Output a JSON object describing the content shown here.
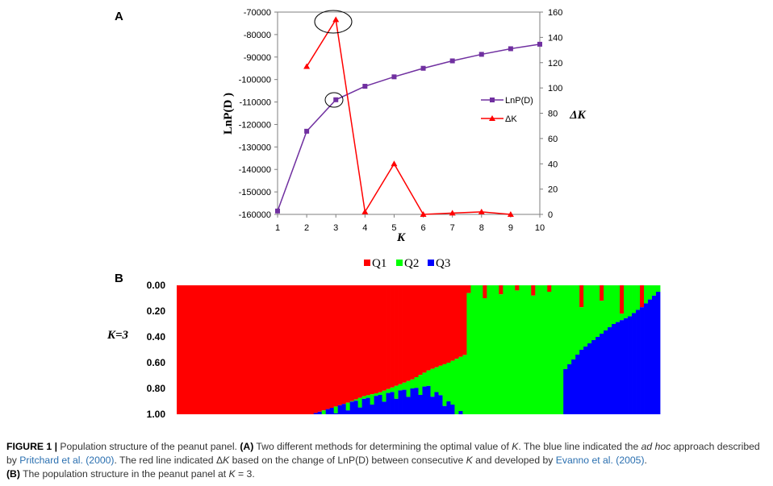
{
  "figure": {
    "panel_a_label": "A",
    "panel_b_label": "B"
  },
  "chart_data": [
    {
      "type": "line",
      "x": [
        1,
        2,
        3,
        4,
        5,
        6,
        7,
        8,
        9,
        10
      ],
      "xlabel": "K",
      "xlim": [
        1,
        10
      ],
      "ylabel": "LnP(D )",
      "ylim": [
        -160000,
        -70000
      ],
      "y_ticks": [
        -70000,
        -80000,
        -90000,
        -100000,
        -110000,
        -120000,
        -130000,
        -140000,
        -150000,
        -160000
      ],
      "y2label": "ΔK",
      "y2lim": [
        0,
        160
      ],
      "y2_ticks": [
        0,
        20,
        40,
        60,
        80,
        100,
        120,
        140,
        160
      ],
      "legend_position": "right-middle",
      "grid": false,
      "series": [
        {
          "name": "LnP(D)",
          "axis": "left",
          "color": "#7030a0",
          "marker": "square",
          "x": [
            1,
            2,
            3,
            4,
            5,
            6,
            7,
            8,
            9,
            10
          ],
          "values": [
            -158500,
            -123000,
            -109000,
            -103000,
            -98800,
            -95000,
            -91700,
            -88800,
            -86300,
            -84300
          ]
        },
        {
          "name": "ΔK",
          "axis": "right",
          "color": "#ff0000",
          "marker": "triangle",
          "x": [
            2,
            3,
            4,
            5,
            6,
            7,
            8,
            9
          ],
          "values": [
            117,
            154,
            2,
            40,
            0,
            1,
            2,
            0
          ]
        }
      ],
      "annotations": [
        "circle around LnP(D) at K=3",
        "circle around ΔK at K=3"
      ]
    },
    {
      "type": "bar",
      "stacked": true,
      "row_label": "K=3",
      "ylim": [
        0,
        1
      ],
      "y_ticks": [
        "0.00",
        "0.20",
        "0.40",
        "0.60",
        "0.80",
        "1.00"
      ],
      "legend_position": "top",
      "series": [
        {
          "name": "Q1",
          "color": "#ff0000"
        },
        {
          "name": "Q2",
          "color": "#00ff00"
        },
        {
          "name": "Q3",
          "color": "#0000ff"
        }
      ],
      "individuals": 120,
      "q1_profile": [
        [
          0,
          1.0
        ],
        [
          33,
          1.0
        ],
        [
          38,
          0.95
        ],
        [
          42,
          0.91
        ],
        [
          46,
          0.86
        ],
        [
          50,
          0.83
        ],
        [
          54,
          0.78
        ],
        [
          58,
          0.73
        ],
        [
          62,
          0.66
        ],
        [
          67,
          0.6
        ],
        [
          71,
          0.54
        ],
        [
          72,
          0.0
        ],
        [
          119,
          0.0
        ]
      ],
      "q3_profile": [
        [
          0,
          0.0
        ],
        [
          33,
          0.0
        ],
        [
          38,
          0.06
        ],
        [
          42,
          0.09
        ],
        [
          46,
          0.12
        ],
        [
          50,
          0.15
        ],
        [
          54,
          0.18
        ],
        [
          58,
          0.2
        ],
        [
          62,
          0.22
        ],
        [
          67,
          0.1
        ],
        [
          71,
          0.0
        ],
        [
          95,
          0.0
        ],
        [
          96,
          0.35
        ],
        [
          100,
          0.5
        ],
        [
          104,
          0.6
        ],
        [
          108,
          0.7
        ],
        [
          112,
          0.76
        ],
        [
          116,
          0.86
        ],
        [
          119,
          0.95
        ]
      ]
    }
  ],
  "caption": {
    "fig_label": "FIGURE 1 |",
    "s1": " Population structure of the peanut panel. ",
    "a_label": "(A)",
    "s2": " Two different methods for determining the optimal value of ",
    "k1": "K",
    "s3": ". The blue line indicated the ",
    "adhoc": "ad hoc",
    "s4": " approach described by ",
    "ref1": "Pritchard et al. (2000)",
    "s5": ". The red line indicated Δ",
    "k2": "K",
    "s6": " based on the change of LnP(D) between consecutive ",
    "k3": "K",
    "s7": " and developed by ",
    "ref2": "Evanno et al. (2005)",
    "s8": ".",
    "b_label": "(B)",
    "s9": " The population structure in the peanut panel at ",
    "k4": "K",
    "s10": " = 3."
  }
}
